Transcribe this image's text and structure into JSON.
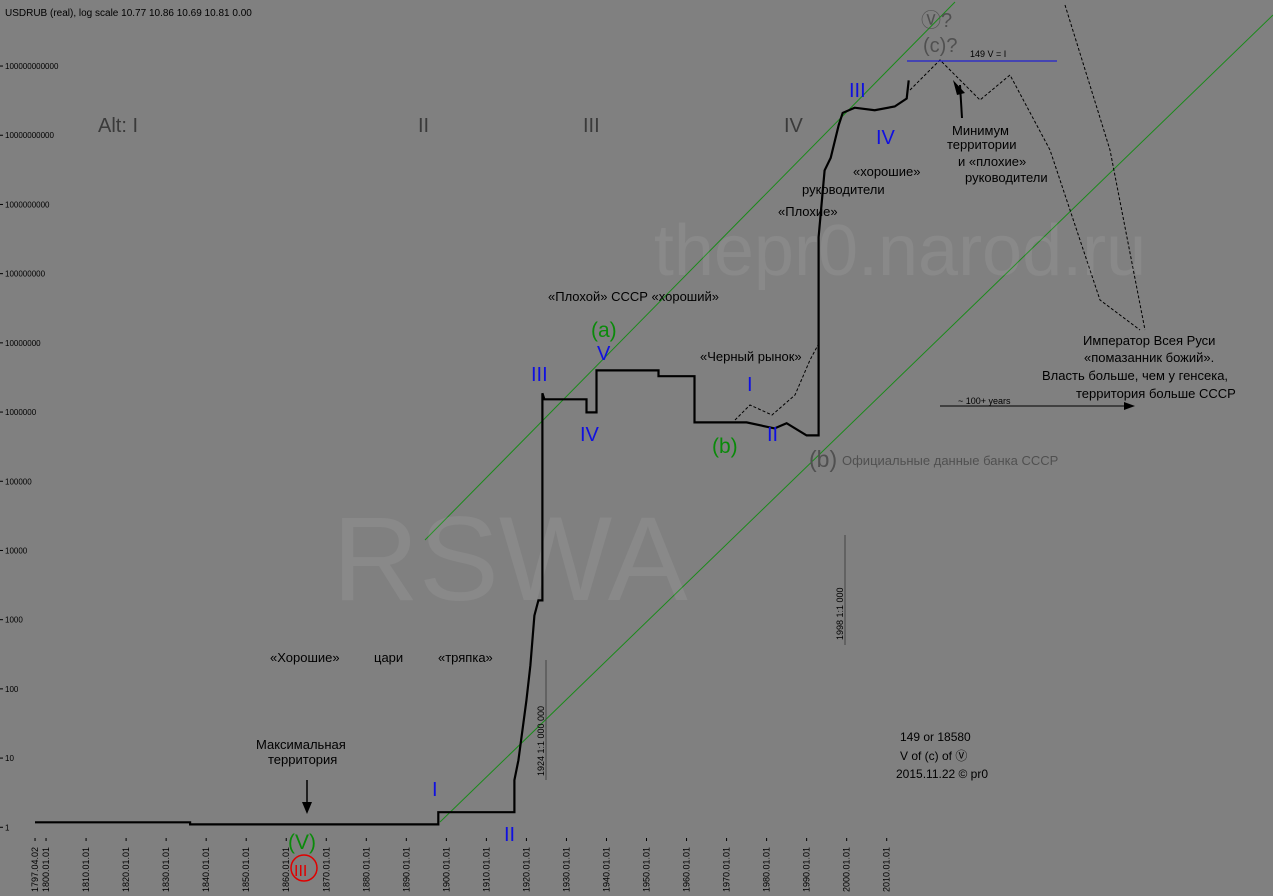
{
  "chart_data": {
    "type": "line",
    "title": "USDRUB (real), log scale 10.77 10.86 10.69 10.81 0.00",
    "log_scale": true,
    "color": "#000000",
    "x": [
      1797.25,
      1836,
      1836,
      1898,
      1898,
      1917,
      1917,
      1918,
      1919,
      1920,
      1921,
      1922,
      1923,
      1924,
      1924,
      1924.5,
      1935,
      1935,
      1937.5,
      1937.5,
      1953,
      1953,
      1962,
      1962,
      1975,
      1982,
      1985,
      1990,
      1993,
      1993,
      1994.5,
      1996,
      1998,
      1999,
      2002,
      2007,
      2012,
      2015,
      2015.5
    ],
    "values": [
      1.18,
      1.18,
      1.1,
      1.1,
      1.65,
      1.65,
      4.8,
      9.3,
      25,
      68,
      220,
      1150,
      1900,
      1900,
      1870000,
      1530000,
      1530000,
      990000,
      990000,
      4000000,
      4000000,
      3300000,
      3300000,
      710000,
      710000,
      580000,
      690000,
      460000,
      460000,
      336000000,
      3100000000,
      4700000000,
      14000000000,
      21000000000,
      25000000000,
      23000000000,
      26000000000,
      34000000000,
      62000000000
    ],
    "xlim": [
      1788.5,
      2106.5
    ],
    "ylim": [
      0.7,
      900000000000
    ],
    "yticks": [
      1,
      10,
      100,
      1000,
      10000,
      100000,
      1000000,
      10000000,
      100000000,
      1000000000,
      10000000000,
      100000000000
    ],
    "xticks": [
      {
        "value": 1797.25,
        "label": "1797.04.02"
      },
      {
        "value": 1800,
        "label": "1800.01.01"
      },
      {
        "value": 1810,
        "label": "1810.01.01"
      },
      {
        "value": 1820,
        "label": "1820.01.01"
      },
      {
        "value": 1830,
        "label": "1830.01.01"
      },
      {
        "value": 1840,
        "label": "1840.01.01"
      },
      {
        "value": 1850,
        "label": "1850.01.01"
      },
      {
        "value": 1860,
        "label": "1860.01.01"
      },
      {
        "value": 1870,
        "label": "1870.01.01"
      },
      {
        "value": 1880,
        "label": "1880.01.01"
      },
      {
        "value": 1890,
        "label": "1890.01.01"
      },
      {
        "value": 1900,
        "label": "1900.01.01"
      },
      {
        "value": 1910,
        "label": "1910.01.01"
      },
      {
        "value": 1920,
        "label": "1920.01.01"
      },
      {
        "value": 1930,
        "label": "1930.01.01"
      },
      {
        "value": 1940,
        "label": "1940.01.01"
      },
      {
        "value": 1950,
        "label": "1950.01.01"
      },
      {
        "value": 1960,
        "label": "1960.01.01"
      },
      {
        "value": 1970,
        "label": "1970.01.01"
      },
      {
        "value": 1980,
        "label": "1980.01.01"
      },
      {
        "value": 1990,
        "label": "1990.01.01"
      },
      {
        "value": 2000,
        "label": "2000.01.01"
      },
      {
        "value": 2010,
        "label": "2010.01.01"
      }
    ],
    "watermarks": [
      "thepr0.narod.ru",
      "RSWA"
    ],
    "annotations": [
      "Alt: I",
      "II",
      "III",
      "IV",
      "«Плохой» СССР «хороший»",
      "(a)",
      "V",
      "III",
      "IV",
      "«Черный рынок»",
      "I",
      "II",
      "(b)",
      "(b)",
      "Официальные данные банка СССР",
      "III",
      "IV",
      "«хорошие»",
      "руководители",
      "«Плохие»",
      "Минимум",
      "территории",
      "и «плохие»",
      "руководители",
      "Ⓥ?",
      "(c)?",
      "149  V = I",
      "Император Всея Руси",
      "«помазанник божий».",
      "Власть больше, чем у генсека,",
      "территория больше СССР",
      "~ 100+ years",
      "«Хорошие»",
      "цари",
      "«тряпка»",
      "Максимальная",
      "территория",
      "(V)",
      "III",
      "I",
      "II",
      "149 or 18580",
      "V of (c) of Ⓥ",
      "2015.11.22 © pr0",
      "1924 1:1 000 000",
      "1998 1:1 000"
    ]
  }
}
